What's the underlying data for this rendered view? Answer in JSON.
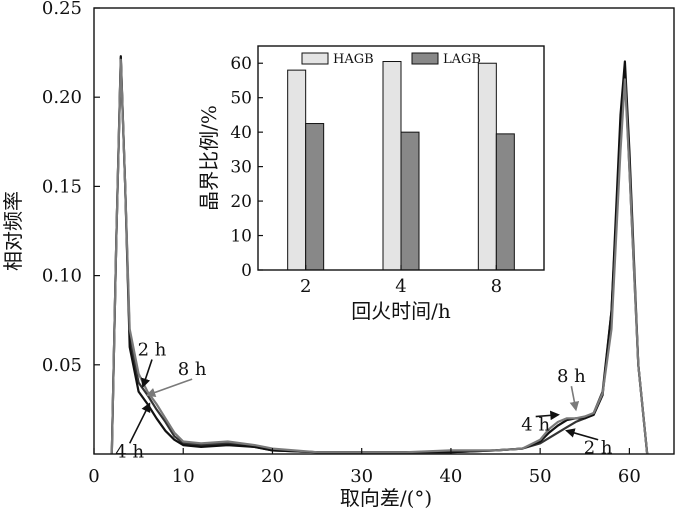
{
  "chart_data": [
    {
      "type": "line",
      "xlabel": "取向差/(°)",
      "ylabel": "相对频率",
      "xlim": [
        0,
        65
      ],
      "ylim": [
        0,
        0.25
      ],
      "xticks": [
        0,
        10,
        20,
        30,
        40,
        50,
        60
      ],
      "yticks": [
        0.05,
        0.1,
        0.15,
        0.2,
        0.25
      ],
      "ytick_labels": [
        "0.05",
        "0.10",
        "0.15",
        "0.20",
        "0.25"
      ],
      "series": [
        {
          "name": "2 h",
          "color": "#333333",
          "x": [
            2.0,
            2.5,
            3.0,
            3.5,
            4.0,
            5.0,
            6.0,
            7.0,
            8.0,
            9.0,
            10.0,
            12.0,
            15.0,
            18.0,
            20.0,
            25.0,
            30.0,
            35.0,
            40.0,
            45.0,
            48.0,
            50.0,
            51.0,
            52.0,
            53.0,
            54.0,
            55.0,
            56.0,
            57.0,
            58.0,
            59.0,
            59.5,
            60.0,
            61.0,
            62.0
          ],
          "y": [
            0.0,
            0.12,
            0.222,
            0.15,
            0.065,
            0.04,
            0.033,
            0.025,
            0.018,
            0.01,
            0.006,
            0.005,
            0.006,
            0.004,
            0.002,
            0.001,
            0.001,
            0.001,
            0.001,
            0.002,
            0.003,
            0.006,
            0.009,
            0.012,
            0.015,
            0.018,
            0.02,
            0.023,
            0.035,
            0.08,
            0.18,
            0.215,
            0.16,
            0.05,
            0.0
          ]
        },
        {
          "name": "4 h",
          "color": "#111111",
          "x": [
            2.0,
            2.5,
            3.0,
            3.5,
            4.0,
            5.0,
            6.0,
            7.0,
            8.0,
            9.0,
            10.0,
            12.0,
            15.0,
            18.0,
            20.0,
            25.0,
            30.0,
            35.0,
            40.0,
            45.0,
            48.0,
            50.0,
            51.0,
            52.0,
            53.0,
            54.0,
            55.0,
            56.0,
            57.0,
            58.0,
            59.0,
            59.5,
            60.0,
            61.0,
            62.0
          ],
          "y": [
            0.0,
            0.12,
            0.223,
            0.15,
            0.06,
            0.035,
            0.028,
            0.02,
            0.013,
            0.008,
            0.005,
            0.004,
            0.005,
            0.004,
            0.002,
            0.001,
            0.001,
            0.001,
            0.001,
            0.002,
            0.003,
            0.007,
            0.012,
            0.016,
            0.019,
            0.02,
            0.02,
            0.022,
            0.033,
            0.08,
            0.19,
            0.22,
            0.17,
            0.05,
            0.0
          ]
        },
        {
          "name": "8 h",
          "color": "#7a7a7a",
          "x": [
            2.0,
            2.5,
            3.0,
            3.5,
            4.0,
            5.0,
            6.0,
            7.0,
            8.0,
            9.0,
            10.0,
            12.0,
            15.0,
            18.0,
            20.0,
            25.0,
            30.0,
            35.0,
            40.0,
            45.0,
            48.0,
            50.0,
            51.0,
            52.0,
            53.0,
            54.0,
            55.0,
            56.0,
            57.0,
            58.0,
            59.0,
            59.5,
            60.0,
            61.0,
            62.0
          ],
          "y": [
            0.0,
            0.12,
            0.221,
            0.15,
            0.07,
            0.045,
            0.035,
            0.028,
            0.02,
            0.012,
            0.007,
            0.006,
            0.007,
            0.005,
            0.003,
            0.001,
            0.001,
            0.001,
            0.002,
            0.002,
            0.003,
            0.008,
            0.014,
            0.018,
            0.02,
            0.02,
            0.021,
            0.023,
            0.034,
            0.07,
            0.17,
            0.21,
            0.16,
            0.05,
            0.0
          ]
        }
      ],
      "annotations": [
        {
          "text": "2 h",
          "color": "#111111",
          "x": 5.5,
          "y": 0.038,
          "text_x": 6.5,
          "text_y": 0.053
        },
        {
          "text": "8 h",
          "color": "#7a7a7a",
          "x": 6.0,
          "y": 0.033,
          "text_x": 11.0,
          "text_y": 0.042
        },
        {
          "text": "4 h",
          "color": "#111111",
          "x": 6.2,
          "y": 0.028,
          "text_x": 4.0,
          "text_y": 0.006
        },
        {
          "text": "8 h",
          "color": "#7a7a7a",
          "x": 54.0,
          "y": 0.025,
          "text_x": 53.5,
          "text_y": 0.038
        },
        {
          "text": "4 h",
          "color": "#111111",
          "x": 52.0,
          "y": 0.022,
          "text_x": 49.5,
          "text_y": 0.021
        },
        {
          "text": "2 h",
          "color": "#111111",
          "x": 53.0,
          "y": 0.013,
          "text_x": 56.5,
          "text_y": 0.008
        }
      ]
    },
    {
      "type": "bar",
      "categories": [
        "2",
        "4",
        "8"
      ],
      "series": [
        {
          "name": "HAGB",
          "color": "#e4e4e4",
          "values": [
            58,
            60.5,
            60
          ]
        },
        {
          "name": "LAGB",
          "color": "#888888",
          "values": [
            42.5,
            40,
            39.5
          ]
        }
      ],
      "xlabel": "回火时间/h",
      "ylabel": "晶界比例/%",
      "ylim": [
        0,
        65
      ],
      "yticks": [
        0,
        10,
        20,
        30,
        40,
        50,
        60
      ],
      "legend": "top"
    }
  ]
}
